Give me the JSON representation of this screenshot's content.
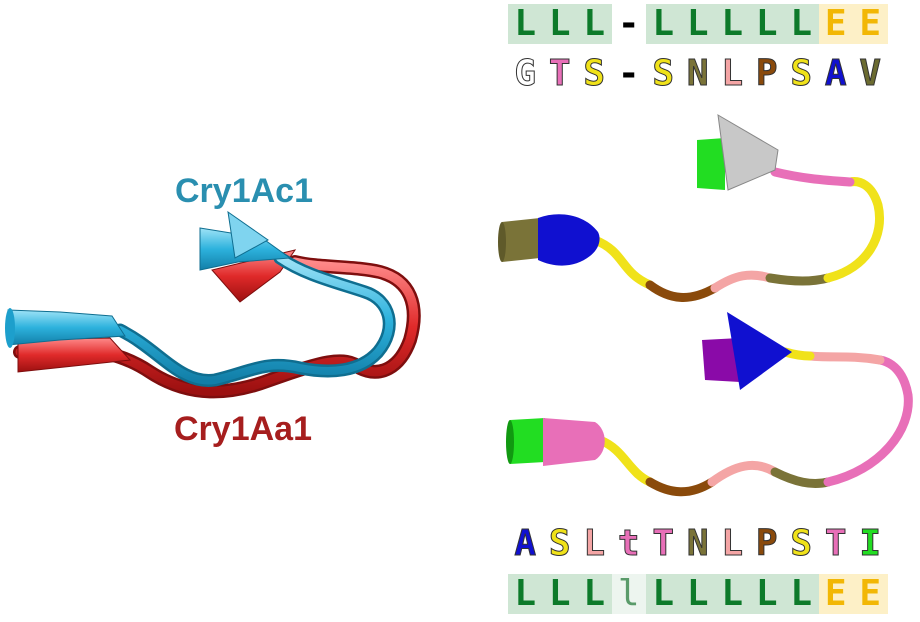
{
  "labels": {
    "top_chain": "Cry1Ac1",
    "bottom_chain": "Cry1Aa1"
  },
  "colors": {
    "top_chain": "#2a8fb0",
    "bottom_chain": "#a61e1e",
    "ss_loop_text": "#0d7a2a",
    "ss_loop_bg": "#cfe6d4",
    "ss_strand_text": "#f2b705",
    "ss_strand_bg": "#fdf0c7"
  },
  "top_sequence": {
    "secondary_structure": [
      "L",
      "L",
      "L",
      "-",
      "L",
      "L",
      "L",
      "L",
      "L",
      "E",
      "E"
    ],
    "residues": [
      {
        "aa": "G",
        "color": "#ffffff"
      },
      {
        "aa": "T",
        "color": "#e86fb8"
      },
      {
        "aa": "S",
        "color": "#f0e21a"
      },
      {
        "aa": "-",
        "color": "#000000"
      },
      {
        "aa": "S",
        "color": "#f0e21a"
      },
      {
        "aa": "N",
        "color": "#7a7338"
      },
      {
        "aa": "L",
        "color": "#f4a5a5"
      },
      {
        "aa": "P",
        "color": "#8a4a0b"
      },
      {
        "aa": "S",
        "color": "#f0e21a"
      },
      {
        "aa": "A",
        "color": "#1010d0"
      },
      {
        "aa": "V",
        "color": "#6b6b30"
      }
    ]
  },
  "bottom_sequence": {
    "residues": [
      {
        "aa": "A",
        "color": "#1010d0"
      },
      {
        "aa": "S",
        "color": "#f0e21a"
      },
      {
        "aa": "L",
        "color": "#f4a5a5"
      },
      {
        "aa": "t",
        "color": "#e86fb8"
      },
      {
        "aa": "T",
        "color": "#e86fb8"
      },
      {
        "aa": "N",
        "color": "#7a7338"
      },
      {
        "aa": "L",
        "color": "#f4a5a5"
      },
      {
        "aa": "P",
        "color": "#8a4a0b"
      },
      {
        "aa": "S",
        "color": "#f0e21a"
      },
      {
        "aa": "T",
        "color": "#e86fb8"
      },
      {
        "aa": "I",
        "color": "#22dd22"
      }
    ],
    "secondary_structure": [
      "L",
      "L",
      "L",
      "l",
      "L",
      "L",
      "L",
      "L",
      "L",
      "E",
      "E"
    ]
  }
}
